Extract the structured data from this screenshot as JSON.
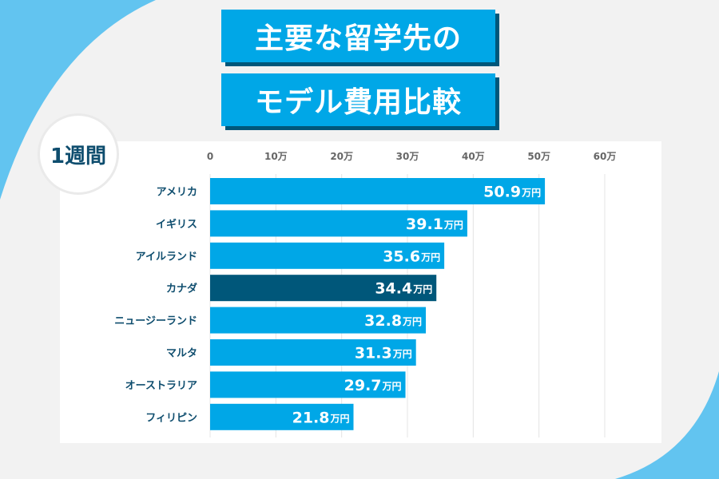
{
  "title_line1": "主要な留学先の",
  "title_line2": "モデル費用比較",
  "period_badge": "1週間",
  "colors": {
    "bar": "#00a7e7",
    "highlight": "#00577a",
    "label": "#0e4d6e",
    "accent_arc": "#62c4f0"
  },
  "chart_data": {
    "type": "bar",
    "orientation": "horizontal",
    "categories": [
      "アメリカ",
      "イギリス",
      "アイルランド",
      "カナダ",
      "ニュージーランド",
      "マルタ",
      "オーストラリア",
      "フィリピン"
    ],
    "values": [
      50.9,
      39.1,
      35.6,
      34.4,
      32.8,
      31.3,
      29.7,
      21.8
    ],
    "value_unit": "万円",
    "highlight": "カナダ",
    "xlim": [
      0,
      60
    ],
    "ticks": [
      0,
      10,
      20,
      30,
      40,
      50,
      60
    ],
    "tick_labels": [
      "0",
      "10万",
      "20万",
      "30万",
      "40万",
      "50万",
      "60万"
    ],
    "grid": true
  }
}
